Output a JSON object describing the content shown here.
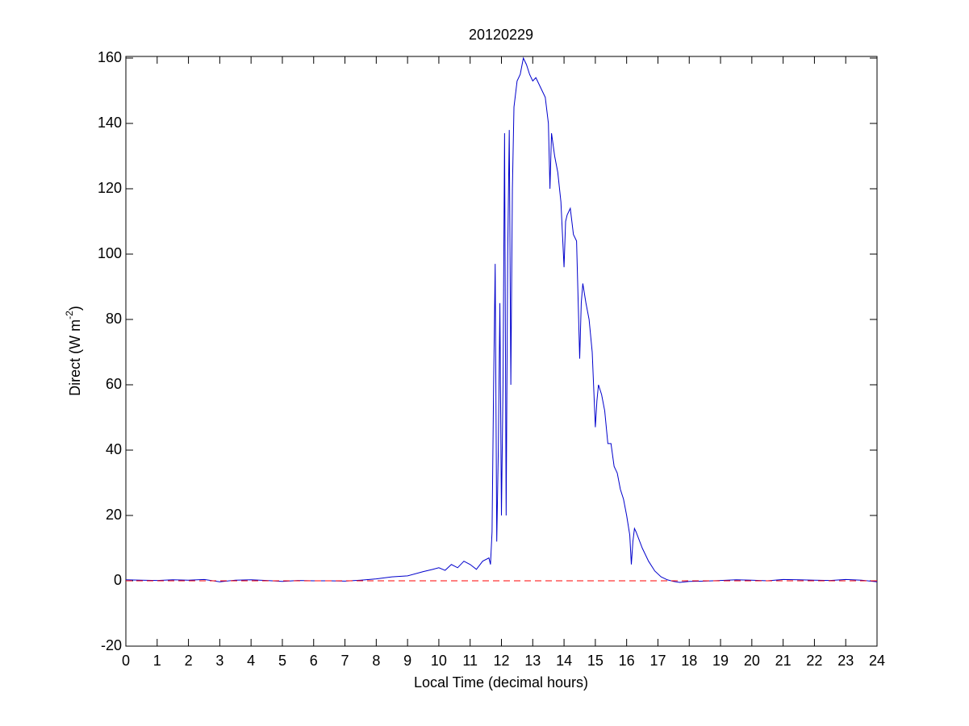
{
  "chart_data": {
    "type": "line",
    "title": "20120229",
    "xlabel": "Local Time (decimal hours)",
    "ylabel": {
      "text": "Direct (W m",
      "superscript": "-2",
      "suffix": ")"
    },
    "xlim": [
      0,
      24
    ],
    "ylim": [
      -20,
      160.5
    ],
    "xticks": [
      0,
      1,
      2,
      3,
      4,
      5,
      6,
      7,
      8,
      9,
      10,
      11,
      12,
      13,
      14,
      15,
      16,
      17,
      18,
      19,
      20,
      21,
      22,
      23,
      24
    ],
    "yticks": [
      -20,
      0,
      20,
      40,
      60,
      80,
      100,
      120,
      140,
      160
    ],
    "reference_line": {
      "value": 0,
      "color": "#ff0000",
      "style": "dashed"
    },
    "series": [
      {
        "color": "#0000cc",
        "x": [
          0,
          0.5,
          1,
          1.5,
          2,
          2.5,
          3,
          3.5,
          4,
          4.5,
          5,
          5.5,
          6,
          6.5,
          7,
          7.5,
          8,
          8.5,
          9,
          9.5,
          9.8,
          10,
          10.2,
          10.4,
          10.6,
          10.8,
          11,
          11.2,
          11.4,
          11.6,
          11.65,
          11.7,
          11.75,
          11.8,
          11.85,
          11.9,
          11.95,
          12,
          12.05,
          12.1,
          12.15,
          12.2,
          12.25,
          12.3,
          12.35,
          12.4,
          12.5,
          12.6,
          12.7,
          12.8,
          12.9,
          13,
          13.1,
          13.2,
          13.3,
          13.4,
          13.5,
          13.55,
          13.6,
          13.7,
          13.8,
          13.9,
          14,
          14.05,
          14.1,
          14.2,
          14.3,
          14.4,
          14.5,
          14.55,
          14.6,
          14.7,
          14.8,
          14.9,
          15,
          15.05,
          15.1,
          15.2,
          15.3,
          15.4,
          15.5,
          15.6,
          15.7,
          15.8,
          15.9,
          16,
          16.1,
          16.15,
          16.2,
          16.25,
          16.3,
          16.5,
          16.7,
          16.9,
          17.1,
          17.3,
          17.5,
          17.7,
          18,
          18.5,
          19,
          19.5,
          20,
          20.5,
          21,
          21.5,
          22,
          22.5,
          23,
          23.5,
          24
        ],
        "values": [
          0.3,
          0.2,
          0.1,
          0.3,
          0.2,
          0.4,
          -0.3,
          0.2,
          0.3,
          0.1,
          -0.2,
          0.1,
          0,
          0,
          -0.1,
          0.2,
          0.6,
          1.2,
          1.5,
          2.8,
          3.5,
          4,
          3.2,
          5,
          4,
          6,
          5,
          3.5,
          6,
          7,
          5,
          15,
          60,
          97,
          12,
          40,
          85,
          20,
          60,
          137,
          20,
          100,
          138,
          60,
          120,
          145,
          153,
          155,
          160,
          158,
          155,
          153,
          154,
          152,
          150,
          148,
          140,
          120,
          137,
          130,
          125,
          116,
          96,
          110,
          112,
          114,
          106,
          104,
          68,
          85,
          91,
          85,
          80,
          70,
          47,
          55,
          60,
          57,
          52,
          42,
          42,
          35,
          33,
          28,
          25,
          20,
          14,
          5,
          12,
          16,
          15,
          10,
          6,
          3,
          1.2,
          0.3,
          -0.2,
          -0.5,
          -0.2,
          -0.1,
          0.1,
          0.3,
          0.2,
          0,
          0.4,
          0.3,
          0.2,
          0.1,
          0.4,
          0.2,
          -0.3
        ]
      }
    ]
  }
}
